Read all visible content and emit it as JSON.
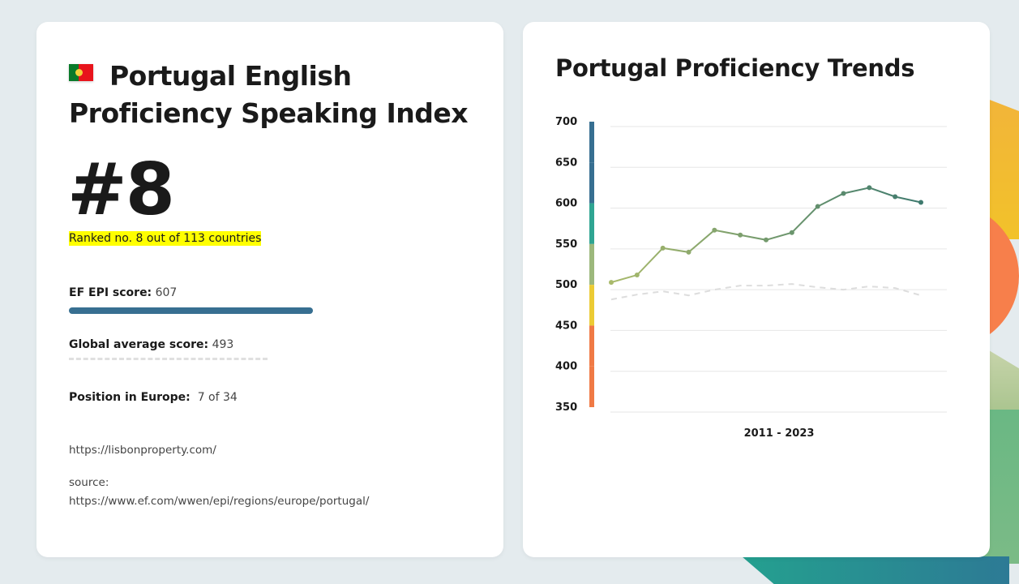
{
  "left_card": {
    "title": "Portugal English Proficiency Speaking Index",
    "flag_icon": "portugal-flag",
    "rank": "#8",
    "ranked_text": "Ranked no. 8 out of 113 countries",
    "epi_label": "EF EPI score:",
    "epi_value": "607",
    "epi_bar_color": "#376f91",
    "global_label": "Global average score:",
    "global_value": "493",
    "europe_label": "Position in Europe:",
    "europe_value": "7 of 34",
    "site_link": "https://lisbonproperty.com/",
    "source_label": "source:",
    "source_link": "https://www.ef.com/wwen/epi/regions/europe/portugal/"
  },
  "right_card": {
    "title": "Portugal Proficiency Trends"
  },
  "chart_data": {
    "type": "line",
    "xlabel": "2011 - 2023",
    "ylim": [
      350,
      700
    ],
    "yticks": [
      "700",
      "650",
      "600",
      "550",
      "500",
      "450",
      "400",
      "350"
    ],
    "grid": true,
    "series": [
      {
        "values": [
          509,
          518,
          551,
          546,
          573,
          567,
          561,
          570,
          602,
          618,
          625,
          614,
          607
        ],
        "style": "solid",
        "colors": [
          "#a9ba6c",
          "#3f7a6e"
        ]
      },
      {
        "values": [
          488,
          494,
          498,
          493,
          500,
          505,
          505,
          507,
          503,
          500,
          504,
          502,
          493
        ],
        "style": "dashed",
        "color": "#dddddd"
      }
    ],
    "proficiency_bands": [
      {
        "from": 650,
        "to": 700,
        "color": "#376f91"
      },
      {
        "from": 600,
        "to": 650,
        "color": "#376f91"
      },
      {
        "from": 550,
        "to": 600,
        "color": "#2fa592"
      },
      {
        "from": 500,
        "to": 550,
        "color": "#9cb87c"
      },
      {
        "from": 450,
        "to": 500,
        "color": "#eccb34"
      },
      {
        "from": 400,
        "to": 450,
        "color": "#f07a45"
      },
      {
        "from": 350,
        "to": 400,
        "color": "#f07a45"
      }
    ]
  }
}
